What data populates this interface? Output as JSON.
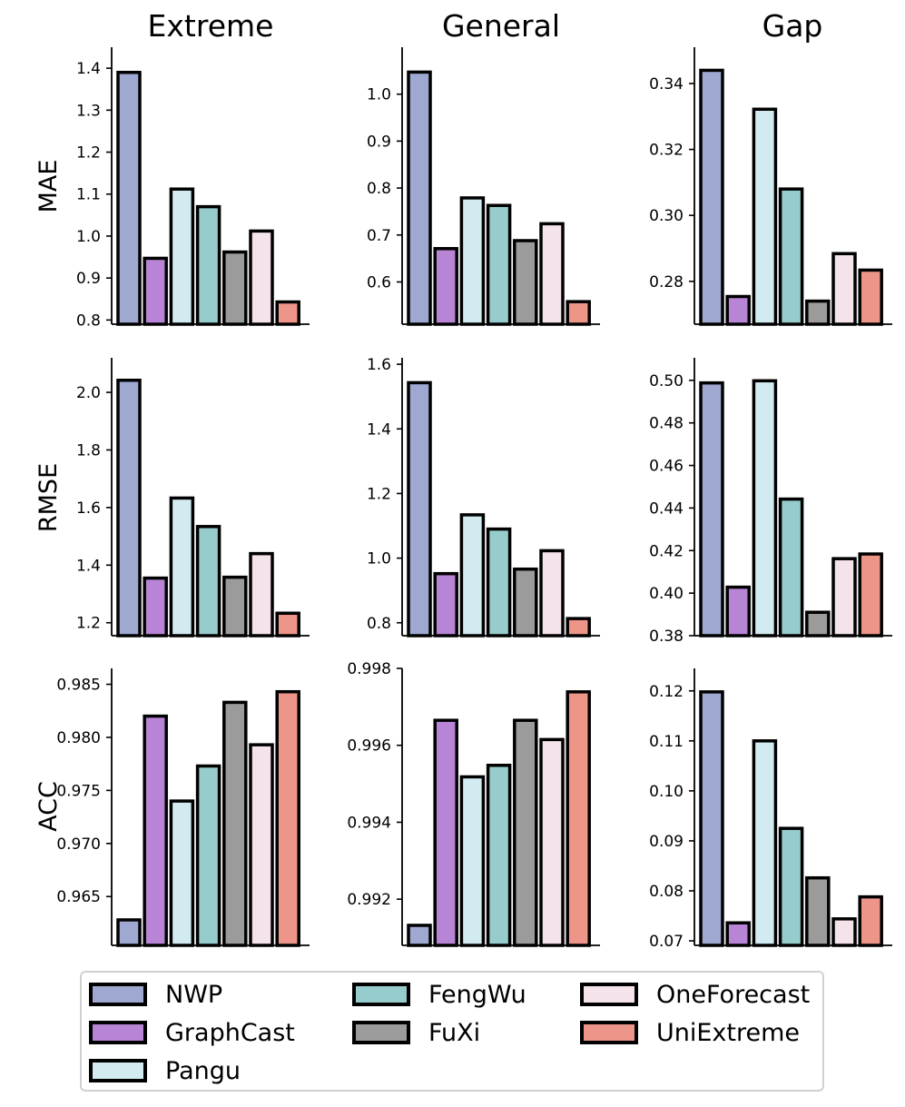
{
  "columns": [
    "Extreme",
    "General",
    "Gap"
  ],
  "rows": [
    "MAE",
    "RMSE",
    "ACC"
  ],
  "legend": [
    {
      "name": "NWP",
      "color": "#9fa8d0"
    },
    {
      "name": "GraphCast",
      "color": "#b784d6"
    },
    {
      "name": "Pangu",
      "color": "#d2ebf1"
    },
    {
      "name": "FengWu",
      "color": "#96cccb"
    },
    {
      "name": "FuXi",
      "color": "#9b9b9b"
    },
    {
      "name": "OneForecast",
      "color": "#f5e3ec"
    },
    {
      "name": "UniExtreme",
      "color": "#ee958a"
    }
  ],
  "chart_data": [
    {
      "type": "bar",
      "row": "MAE",
      "column": "Extreme",
      "categories": [
        "NWP",
        "GraphCast",
        "Pangu",
        "FengWu",
        "FuXi",
        "OneForecast",
        "UniExtreme"
      ],
      "values": [
        1.39,
        0.947,
        1.112,
        1.07,
        0.962,
        1.012,
        0.843
      ],
      "ylim": [
        0.79,
        1.45
      ],
      "yticks": [
        "0.8",
        "0.9",
        "1.0",
        "1.1",
        "1.2",
        "1.3",
        "1.4"
      ]
    },
    {
      "type": "bar",
      "row": "MAE",
      "column": "General",
      "categories": [
        "NWP",
        "GraphCast",
        "Pangu",
        "FengWu",
        "FuXi",
        "OneForecast",
        "UniExtreme"
      ],
      "values": [
        1.047,
        0.671,
        0.779,
        0.763,
        0.688,
        0.724,
        0.558
      ],
      "ylim": [
        0.51,
        1.1
      ],
      "yticks": [
        "0.6",
        "0.7",
        "0.8",
        "0.9",
        "1.0"
      ]
    },
    {
      "type": "bar",
      "row": "MAE",
      "column": "Gap",
      "categories": [
        "NWP",
        "GraphCast",
        "Pangu",
        "FengWu",
        "FuXi",
        "OneForecast",
        "UniExtreme"
      ],
      "values": [
        0.344,
        0.2754,
        0.3322,
        0.308,
        0.274,
        0.2884,
        0.2834
      ],
      "ylim": [
        0.267,
        0.351
      ],
      "yticks": [
        "0.28",
        "0.30",
        "0.32",
        "0.34"
      ]
    },
    {
      "type": "bar",
      "row": "RMSE",
      "column": "Extreme",
      "categories": [
        "NWP",
        "GraphCast",
        "Pangu",
        "FengWu",
        "FuXi",
        "OneForecast",
        "UniExtreme"
      ],
      "values": [
        2.042,
        1.355,
        1.633,
        1.534,
        1.358,
        1.44,
        1.233
      ],
      "ylim": [
        1.155,
        2.12
      ],
      "yticks": [
        "1.2",
        "1.4",
        "1.6",
        "1.8",
        "2.0"
      ]
    },
    {
      "type": "bar",
      "row": "RMSE",
      "column": "General",
      "categories": [
        "NWP",
        "GraphCast",
        "Pangu",
        "FengWu",
        "FuXi",
        "OneForecast",
        "UniExtreme"
      ],
      "values": [
        1.543,
        0.952,
        1.134,
        1.09,
        0.966,
        1.023,
        0.813
      ],
      "ylim": [
        0.76,
        1.62
      ],
      "yticks": [
        "0.8",
        "1.0",
        "1.2",
        "1.4",
        "1.6"
      ]
    },
    {
      "type": "bar",
      "row": "RMSE",
      "column": "Gap",
      "categories": [
        "NWP",
        "GraphCast",
        "Pangu",
        "FengWu",
        "FuXi",
        "OneForecast",
        "UniExtreme"
      ],
      "values": [
        0.4988,
        0.4028,
        0.4998,
        0.4442,
        0.391,
        0.4162,
        0.4184
      ],
      "ylim": [
        0.38,
        0.5106
      ],
      "yticks": [
        "0.38",
        "0.40",
        "0.42",
        "0.44",
        "0.46",
        "0.48",
        "0.50"
      ]
    },
    {
      "type": "bar",
      "row": "ACC",
      "column": "Extreme",
      "categories": [
        "NWP",
        "GraphCast",
        "Pangu",
        "FengWu",
        "FuXi",
        "OneForecast",
        "UniExtreme"
      ],
      "values": [
        0.9628,
        0.982,
        0.974,
        0.9773,
        0.9833,
        0.9793,
        0.9843
      ],
      "ylim": [
        0.9604,
        0.9865
      ],
      "yticks": [
        "0.965",
        "0.970",
        "0.975",
        "0.980",
        "0.985"
      ]
    },
    {
      "type": "bar",
      "row": "ACC",
      "column": "General",
      "categories": [
        "NWP",
        "GraphCast",
        "Pangu",
        "FengWu",
        "FuXi",
        "OneForecast",
        "UniExtreme"
      ],
      "values": [
        0.99132,
        0.99665,
        0.99518,
        0.99548,
        0.99665,
        0.99615,
        0.99739
      ],
      "ylim": [
        0.9908,
        0.998
      ],
      "yticks": [
        "0.992",
        "0.994",
        "0.996",
        "0.998"
      ]
    },
    {
      "type": "bar",
      "row": "ACC",
      "column": "Gap",
      "categories": [
        "NWP",
        "GraphCast",
        "Pangu",
        "FengWu",
        "FuXi",
        "OneForecast",
        "UniExtreme"
      ],
      "values": [
        0.1198,
        0.0736,
        0.11,
        0.0925,
        0.0826,
        0.0744,
        0.0788
      ],
      "ylim": [
        0.0691,
        0.1245
      ],
      "yticks": [
        "0.07",
        "0.08",
        "0.09",
        "0.10",
        "0.11",
        "0.12"
      ]
    }
  ]
}
